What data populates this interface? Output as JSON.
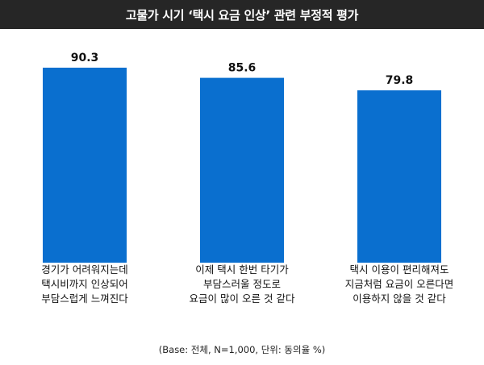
{
  "title": "고물가 시기 ‘택시 요금 인상’ 관련 부정적 평가",
  "source_note": "(Base: 전체, N=1,000, 단위: 동의율 %)",
  "colors": {
    "bar": "#0a6fcf",
    "title_bg": "#262626"
  },
  "chart_data": {
    "type": "bar",
    "categories": [
      "경기가 어려워지는데\n택시비까지 인상되어\n부담스럽게 느껴진다",
      "이제 택시 한번 타기가\n부담스러울 정도로\n요금이 많이 오른 것 같다",
      "택시 이용이 편리해져도\n지금처럼 요금이 오른다면\n이용하지 않을 것 같다"
    ],
    "values": [
      90.3,
      85.6,
      79.8
    ],
    "value_labels": [
      "90.3",
      "85.6",
      "79.8"
    ],
    "title": "고물가 시기 ‘택시 요금 인상’ 관련 부정적 평가",
    "xlabel": "",
    "ylabel": "",
    "ylim": [
      0,
      100
    ],
    "grid": false,
    "legend": "none"
  }
}
